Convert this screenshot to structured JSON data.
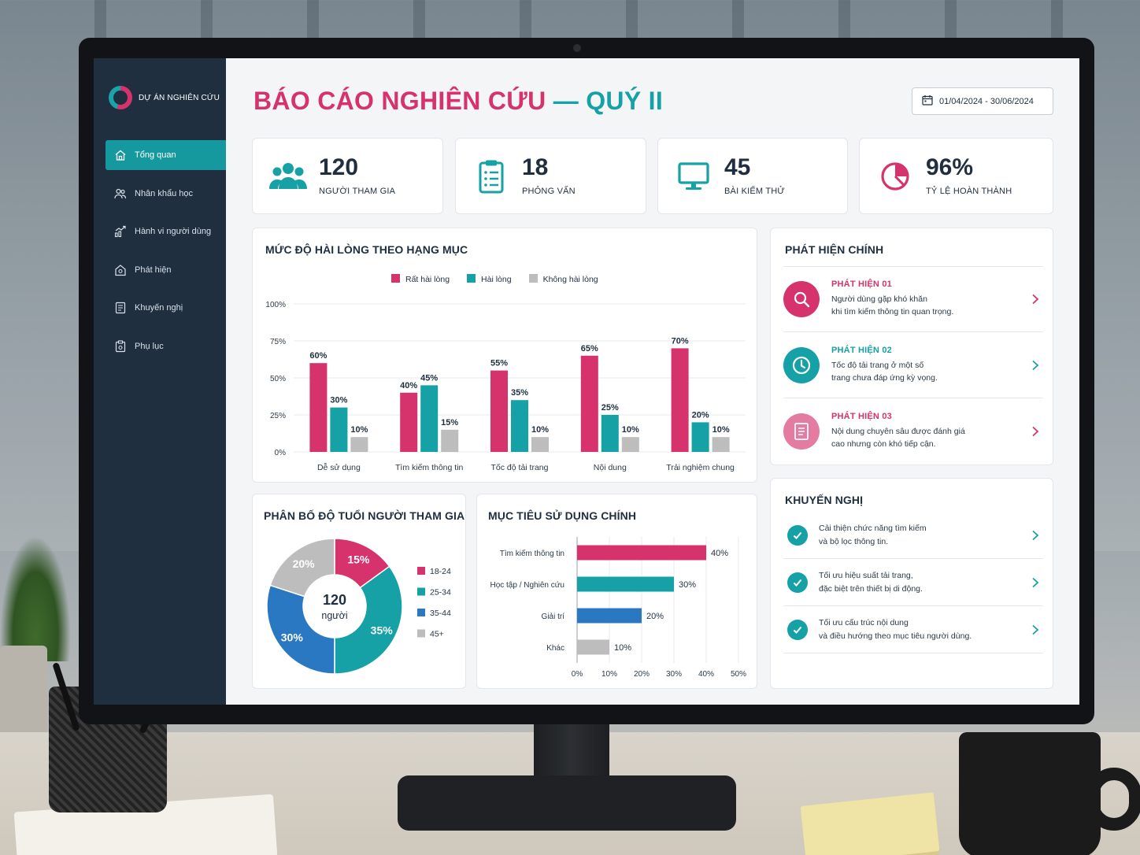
{
  "app": {
    "brand": "DỰ ÁN NGHIÊN CỨU",
    "title_main": "BÁO CÁO NGHIÊN CỨU",
    "title_dash": "—",
    "title_quarter": "QUÝ II",
    "date_range": "01/04/2024 - 30/06/2024"
  },
  "sidebar": {
    "items": [
      {
        "label": "Tổng quan",
        "icon": "home-icon",
        "active": true
      },
      {
        "label": "Nhân khẩu học",
        "icon": "users-icon"
      },
      {
        "label": "Hành vi người dùng",
        "icon": "trend-chart-icon"
      },
      {
        "label": "Phát hiện",
        "icon": "house-search-icon"
      },
      {
        "label": "Khuyến nghị",
        "icon": "document-icon"
      },
      {
        "label": "Phụ lục",
        "icon": "clipboard-icon"
      }
    ]
  },
  "kpis": [
    {
      "value": "120",
      "label": "NGƯỜI THAM GIA",
      "icon": "users-icon",
      "color": "#15a1a6"
    },
    {
      "value": "18",
      "label": "PHỎNG VẤN",
      "icon": "clipboard-list-icon",
      "color": "#15a1a6"
    },
    {
      "value": "45",
      "label": "BÀI KIỂM THỬ",
      "icon": "monitor-icon",
      "color": "#15a1a6"
    },
    {
      "value": "96%",
      "label": "TỶ LỆ HOÀN THÀNH",
      "icon": "pie-icon",
      "color": "#d6336c"
    }
  ],
  "colors": {
    "pink": "#d6336c",
    "teal": "#15a1a6",
    "blue": "#2b78c2",
    "gray": "#bdbdbd",
    "navy": "#1f2f40"
  },
  "satisfaction": {
    "title": "MỨC ĐỘ HÀI LÒNG THEO HẠNG MỤC"
  },
  "age": {
    "title": "PHÂN BỐ ĐỘ TUỔI NGƯỜI THAM GIA",
    "center_value": "120",
    "center_label": "người"
  },
  "goals": {
    "title": "MỤC TIÊU SỬ DỤNG CHÍNH"
  },
  "findings": {
    "title": "PHÁT HIỆN CHÍNH",
    "items": [
      {
        "tag": "PHÁT HIỆN 01",
        "line1": "Người dùng gặp khó khăn",
        "line2": "khi tìm kiếm thông tin quan trọng.",
        "icon": "search-icon",
        "color": "#d6336c"
      },
      {
        "tag": "PHÁT HIỆN 02",
        "line1": "Tốc độ tải trang ở một số",
        "line2": "trang chưa đáp ứng kỳ vọng.",
        "icon": "clock-icon",
        "color": "#15a1a6"
      },
      {
        "tag": "PHÁT HIỆN 03",
        "line1": "Nội dung chuyên sâu được đánh giá",
        "line2": "cao nhưng còn khó tiếp cận.",
        "icon": "document-icon",
        "color": "#e47ba0"
      }
    ]
  },
  "recommendations": {
    "title": "KHUYẾN NGHỊ",
    "items": [
      {
        "line1": "Cải thiện chức năng tìm kiếm",
        "line2": "và bộ lọc thông tin."
      },
      {
        "line1": "Tối ưu hiệu suất tải trang,",
        "line2": "đặc biệt trên thiết bị di động."
      },
      {
        "line1": "Tối ưu cấu trúc nội dung",
        "line2": "và điều hướng theo mục tiêu người dùng."
      }
    ]
  },
  "chart_data": [
    {
      "type": "bar",
      "title": "MỨC ĐỘ HÀI LÒNG THEO HẠNG MỤC",
      "categories": [
        "Dễ sử dụng",
        "Tìm kiếm thông tin",
        "Tốc độ tải trang",
        "Nội dung",
        "Trải nghiệm chung"
      ],
      "series": [
        {
          "name": "Rất hài lòng",
          "color": "#d6336c",
          "values": [
            60,
            40,
            55,
            65,
            70
          ]
        },
        {
          "name": "Hài lòng",
          "color": "#15a1a6",
          "values": [
            30,
            45,
            35,
            25,
            20
          ]
        },
        {
          "name": "Không hài lòng",
          "color": "#bdbdbd",
          "values": [
            10,
            15,
            10,
            10,
            10
          ]
        }
      ],
      "y_ticks": [
        "0%",
        "25%",
        "50%",
        "75%",
        "100%"
      ],
      "ylim": [
        0,
        100
      ],
      "data_labels": true,
      "legend": "top-center",
      "grid": true
    },
    {
      "type": "pie",
      "title": "PHÂN BỐ ĐỘ TUỔI NGƯỜI THAM GIA",
      "donut": true,
      "slices": [
        {
          "label": "18-24",
          "value": 15,
          "display": "15%",
          "color": "#d6336c"
        },
        {
          "label": "25-34",
          "value": 35,
          "display": "35%",
          "color": "#15a1a6"
        },
        {
          "label": "35-44",
          "value": 30,
          "display": "30%",
          "color": "#2b78c2"
        },
        {
          "label": "45+",
          "value": 20,
          "display": "20%",
          "color": "#bdbdbd"
        }
      ],
      "legend": "right"
    },
    {
      "type": "bar",
      "orientation": "horizontal",
      "title": "MỤC TIÊU SỬ DỤNG CHÍNH",
      "categories": [
        "Tìm kiếm thông tin",
        "Học tập / Nghiên cứu",
        "Giải trí",
        "Khác"
      ],
      "values": [
        40,
        30,
        20,
        10
      ],
      "colors": [
        "#d6336c",
        "#15a1a6",
        "#2b78c2",
        "#bdbdbd"
      ],
      "x_ticks": [
        "0%",
        "10%",
        "20%",
        "30%",
        "40%",
        "50%"
      ],
      "xlim": [
        0,
        50
      ],
      "grid": true
    }
  ]
}
